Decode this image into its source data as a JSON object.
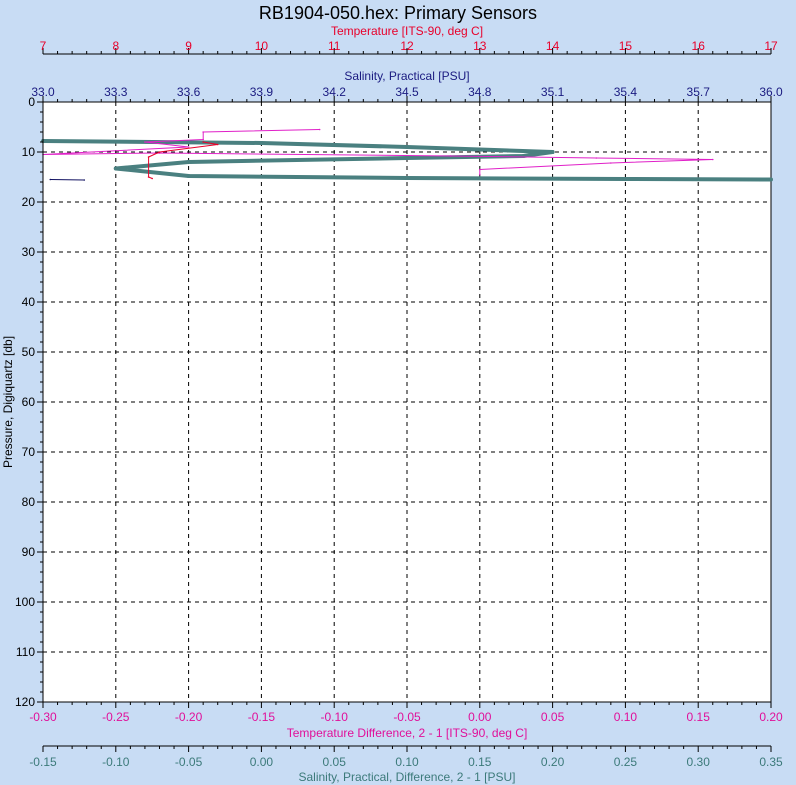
{
  "chart_data": {
    "type": "line",
    "title": "RB1904-050.hex: Primary Sensors",
    "grid": true,
    "axes": {
      "temperature": {
        "label": "Temperature [ITS-90, deg C]",
        "position": "top-1",
        "color": "#e8002a",
        "range": [
          7,
          17
        ],
        "ticks": [
          7,
          8,
          9,
          10,
          11,
          12,
          13,
          14,
          15,
          16,
          17
        ],
        "tick_labels": [
          "7",
          "8",
          "9",
          "10",
          "11",
          "12",
          "13",
          "14",
          "15",
          "16",
          "17"
        ]
      },
      "salinity": {
        "label": "Salinity, Practical [PSU]",
        "position": "top-2",
        "color": "#1a1a80",
        "range": [
          33.0,
          36.0
        ],
        "ticks": [
          33.0,
          33.3,
          33.6,
          33.9,
          34.2,
          34.5,
          34.8,
          35.1,
          35.4,
          35.7,
          36.0
        ],
        "tick_labels": [
          "33.0",
          "33.3",
          "33.6",
          "33.9",
          "34.2",
          "34.5",
          "34.8",
          "35.1",
          "35.4",
          "35.7",
          "36.0"
        ]
      },
      "pressure": {
        "label": "Pressure, Digiquartz [db]",
        "position": "left",
        "color": "#000000",
        "range": [
          0,
          120
        ],
        "inverted": true,
        "ticks": [
          0,
          10,
          20,
          30,
          40,
          50,
          60,
          70,
          80,
          90,
          100,
          110,
          120
        ],
        "tick_labels": [
          "0",
          "10",
          "20",
          "30",
          "40",
          "50",
          "60",
          "70",
          "80",
          "90",
          "100",
          "110",
          "120"
        ]
      },
      "temperature_difference": {
        "label": "Temperature Difference, 2 - 1 [ITS-90, deg C]",
        "position": "bottom-1",
        "color": "#e0109a",
        "range": [
          -0.3,
          0.2
        ],
        "ticks": [
          -0.3,
          -0.25,
          -0.2,
          -0.15,
          -0.1,
          -0.05,
          0.0,
          0.05,
          0.1,
          0.15,
          0.2
        ],
        "tick_labels": [
          "-0.30",
          "-0.25",
          "-0.20",
          "-0.15",
          "-0.10",
          "-0.05",
          "0.00",
          "0.05",
          "0.10",
          "0.15",
          "0.20"
        ]
      },
      "salinity_difference": {
        "label": "Salinity, Practical, Difference, 2 - 1 [PSU]",
        "position": "bottom-2",
        "color": "#3c7a7a",
        "range": [
          -0.15,
          0.35
        ],
        "ticks": [
          -0.15,
          -0.1,
          -0.05,
          0.0,
          0.05,
          0.1,
          0.15,
          0.2,
          0.25,
          0.3,
          0.35
        ],
        "tick_labels": [
          "-0.15",
          "-0.10",
          "-0.05",
          "0.00",
          "0.05",
          "0.10",
          "0.15",
          "0.20",
          "0.25",
          "0.30",
          "0.35"
        ]
      }
    },
    "series": [
      {
        "axis": "salinity_difference",
        "color": "#4a8080",
        "width": 4,
        "x": [
          -0.15,
          0.0,
          0.1,
          0.2,
          0.18,
          0.1,
          -0.05,
          -0.1,
          -0.05,
          0.1,
          0.25,
          0.35
        ],
        "y": [
          7.8,
          8.2,
          9.0,
          10.0,
          10.8,
          11.2,
          12.0,
          13.3,
          14.8,
          15.2,
          15.4,
          15.5
        ]
      },
      {
        "axis": "temperature_difference",
        "color": "#e020c8",
        "width": 1,
        "x": [
          -0.11,
          -0.19,
          -0.19,
          -0.23,
          -0.2,
          -0.3,
          -0.22,
          -0.02,
          0.08,
          0.16,
          0.09,
          0.0,
          0.0
        ],
        "y": [
          5.5,
          6.0,
          7.5,
          8.0,
          9.0,
          10.5,
          10.2,
          10.8,
          11.2,
          11.5,
          12.2,
          13.5,
          14.5
        ]
      },
      {
        "axis": "temperature",
        "color": "#e8002a",
        "width": 1,
        "x": [
          9.2,
          9.4,
          8.6,
          8.45,
          8.45,
          8.5
        ],
        "y": [
          8.0,
          8.5,
          10.0,
          11.0,
          15.0,
          15.3
        ]
      },
      {
        "axis": "salinity",
        "color": "#101060",
        "width": 1,
        "x": [
          33.03,
          33.17
        ],
        "y": [
          15.5,
          15.6
        ]
      }
    ]
  }
}
